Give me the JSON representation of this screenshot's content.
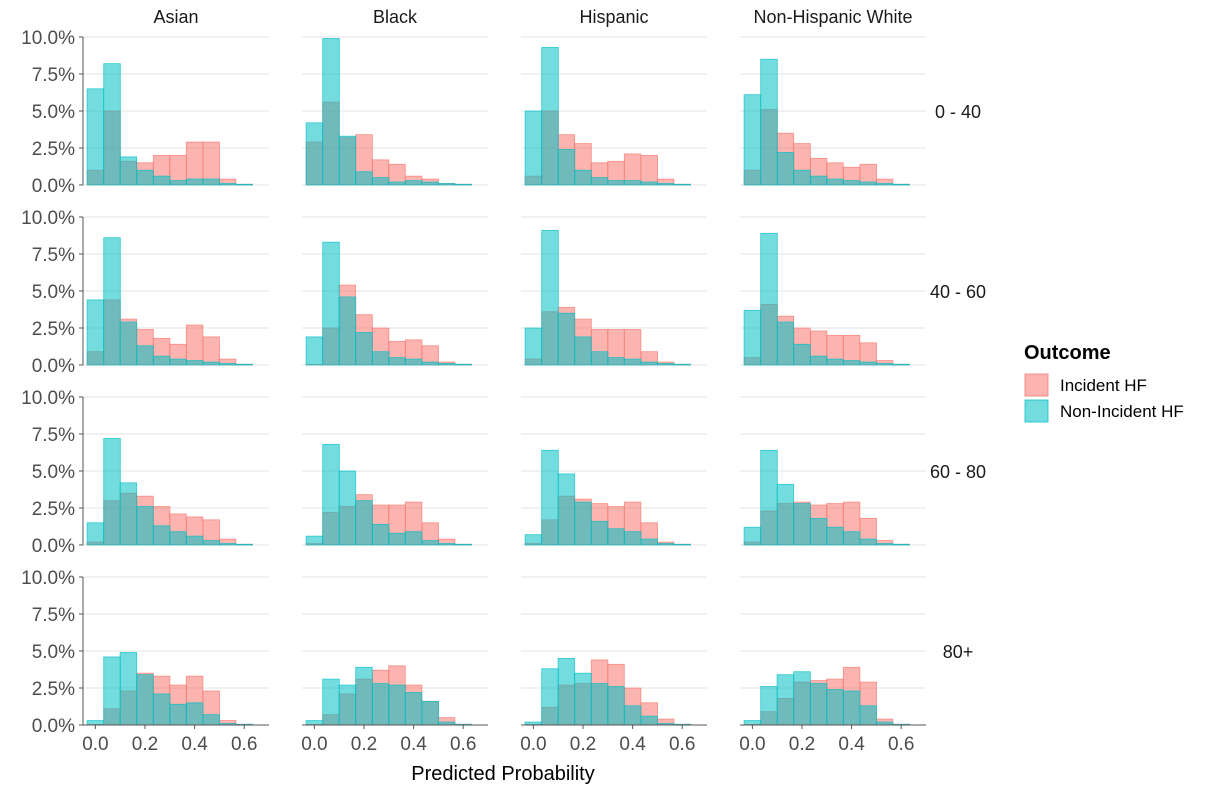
{
  "chart_data": {
    "type": "bar",
    "subtype": "faceted-overlapping-histogram",
    "xlabel": "Predicted Probability",
    "ylabel": "",
    "x_ticks": [
      "0.0",
      "0.2",
      "0.4",
      "0.6"
    ],
    "xlim": [
      -0.05,
      0.7
    ],
    "y_ticks": [
      "0.0%",
      "2.5%",
      "5.0%",
      "7.5%",
      "10.0%"
    ],
    "ylim": [
      0,
      10
    ],
    "grid": "horizontal",
    "bin_centers": [
      0.0,
      0.067,
      0.133,
      0.2,
      0.267,
      0.333,
      0.4,
      0.467,
      0.533,
      0.6
    ],
    "columns": [
      "Asian",
      "Black",
      "Hispanic",
      "Non-Hispanic White"
    ],
    "rows": [
      "0 - 40",
      "40 - 60",
      "60 - 80",
      "80+"
    ],
    "legend": {
      "title": "Outcome",
      "position": "right",
      "items": [
        {
          "name": "Incident HF",
          "color": "#F8766D"
        },
        {
          "name": "Non-Incident HF",
          "color": "#00BFC4"
        }
      ]
    },
    "panels": [
      {
        "row": "0 - 40",
        "col": "Asian",
        "incident_hf": [
          1.0,
          5.0,
          1.6,
          1.5,
          2.0,
          2.0,
          2.9,
          2.9,
          0.4,
          0.05
        ],
        "non_incident_hf": [
          6.5,
          8.2,
          1.9,
          1.0,
          0.6,
          0.3,
          0.4,
          0.4,
          0.1,
          0.05
        ]
      },
      {
        "row": "0 - 40",
        "col": "Black",
        "incident_hf": [
          2.9,
          5.6,
          3.2,
          3.4,
          1.7,
          1.4,
          0.6,
          0.4,
          0.1,
          0.05
        ],
        "non_incident_hf": [
          4.2,
          9.9,
          3.3,
          0.9,
          0.5,
          0.2,
          0.3,
          0.2,
          0.1,
          0.05
        ]
      },
      {
        "row": "0 - 40",
        "col": "Hispanic",
        "incident_hf": [
          0.6,
          5.0,
          3.4,
          2.8,
          1.5,
          1.6,
          2.1,
          2.0,
          0.4,
          0.05
        ],
        "non_incident_hf": [
          5.0,
          9.3,
          2.4,
          1.0,
          0.5,
          0.3,
          0.3,
          0.2,
          0.1,
          0.05
        ]
      },
      {
        "row": "0 - 40",
        "col": "Non-Hispanic White",
        "incident_hf": [
          1.0,
          5.1,
          3.5,
          2.8,
          1.8,
          1.5,
          1.2,
          1.4,
          0.4,
          0.05
        ],
        "non_incident_hf": [
          6.1,
          8.5,
          2.2,
          1.0,
          0.6,
          0.4,
          0.3,
          0.2,
          0.1,
          0.05
        ]
      },
      {
        "row": "40 - 60",
        "col": "Asian",
        "incident_hf": [
          0.9,
          4.4,
          3.1,
          2.4,
          1.8,
          1.4,
          2.7,
          1.9,
          0.4,
          0.05
        ],
        "non_incident_hf": [
          4.4,
          8.6,
          2.9,
          1.3,
          0.6,
          0.4,
          0.3,
          0.2,
          0.1,
          0.05
        ]
      },
      {
        "row": "40 - 60",
        "col": "Black",
        "incident_hf": [
          0.0,
          2.5,
          5.4,
          3.4,
          2.5,
          1.6,
          1.7,
          1.3,
          0.2,
          0.05
        ],
        "non_incident_hf": [
          1.9,
          8.3,
          4.6,
          2.2,
          0.9,
          0.5,
          0.4,
          0.2,
          0.1,
          0.05
        ]
      },
      {
        "row": "40 - 60",
        "col": "Hispanic",
        "incident_hf": [
          0.4,
          3.6,
          3.9,
          3.1,
          2.4,
          2.4,
          2.4,
          0.9,
          0.2,
          0.05
        ],
        "non_incident_hf": [
          2.5,
          9.1,
          3.5,
          1.9,
          0.9,
          0.5,
          0.4,
          0.2,
          0.1,
          0.05
        ]
      },
      {
        "row": "40 - 60",
        "col": "Non-Hispanic White",
        "incident_hf": [
          0.5,
          4.1,
          3.3,
          2.5,
          2.3,
          2.0,
          2.0,
          1.5,
          0.3,
          0.05
        ],
        "non_incident_hf": [
          3.7,
          8.9,
          2.9,
          1.4,
          0.6,
          0.4,
          0.3,
          0.2,
          0.1,
          0.05
        ]
      },
      {
        "row": "60 - 80",
        "col": "Asian",
        "incident_hf": [
          0.2,
          3.0,
          3.5,
          3.3,
          2.6,
          2.1,
          1.9,
          1.7,
          0.4,
          0.05
        ],
        "non_incident_hf": [
          1.5,
          7.2,
          4.2,
          2.6,
          1.3,
          0.9,
          0.6,
          0.3,
          0.1,
          0.05
        ]
      },
      {
        "row": "60 - 80",
        "col": "Black",
        "incident_hf": [
          0.1,
          2.2,
          2.6,
          3.4,
          2.7,
          2.7,
          2.9,
          1.5,
          0.4,
          0.05
        ],
        "non_incident_hf": [
          0.6,
          6.8,
          5.0,
          3.0,
          1.4,
          0.8,
          0.9,
          0.3,
          0.1,
          0.05
        ]
      },
      {
        "row": "60 - 80",
        "col": "Hispanic",
        "incident_hf": [
          0.1,
          1.7,
          3.3,
          3.1,
          2.8,
          2.6,
          2.9,
          1.5,
          0.2,
          0.05
        ],
        "non_incident_hf": [
          0.7,
          6.4,
          4.8,
          2.9,
          1.6,
          1.1,
          0.9,
          0.4,
          0.1,
          0.05
        ]
      },
      {
        "row": "60 - 80",
        "col": "Non-Hispanic White",
        "incident_hf": [
          0.2,
          2.3,
          2.8,
          2.9,
          2.7,
          2.8,
          2.9,
          1.8,
          0.3,
          0.05
        ],
        "non_incident_hf": [
          1.2,
          6.4,
          4.1,
          2.8,
          1.8,
          1.2,
          0.9,
          0.4,
          0.1,
          0.05
        ]
      },
      {
        "row": "80+",
        "col": "Asian",
        "incident_hf": [
          0.0,
          1.1,
          2.3,
          3.5,
          3.3,
          2.7,
          3.3,
          2.3,
          0.3,
          0.05
        ],
        "non_incident_hf": [
          0.3,
          4.6,
          4.9,
          3.4,
          2.1,
          1.4,
          1.5,
          0.7,
          0.1,
          0.05
        ]
      },
      {
        "row": "80+",
        "col": "Black",
        "incident_hf": [
          0.0,
          0.7,
          2.1,
          3.1,
          3.7,
          4.0,
          2.7,
          1.6,
          0.5,
          0.05
        ],
        "non_incident_hf": [
          0.3,
          3.1,
          2.7,
          3.9,
          2.8,
          2.7,
          2.2,
          1.6,
          0.2,
          0.05
        ]
      },
      {
        "row": "80+",
        "col": "Hispanic",
        "incident_hf": [
          0.0,
          1.2,
          2.7,
          2.8,
          4.4,
          4.1,
          2.5,
          1.5,
          0.4,
          0.05
        ],
        "non_incident_hf": [
          0.2,
          3.8,
          4.5,
          3.5,
          2.8,
          2.6,
          1.3,
          0.6,
          0.1,
          0.05
        ]
      },
      {
        "row": "80+",
        "col": "Non-Hispanic White",
        "incident_hf": [
          0.0,
          0.9,
          1.8,
          2.9,
          3.0,
          3.1,
          3.9,
          2.9,
          0.4,
          0.05
        ],
        "non_incident_hf": [
          0.3,
          2.6,
          3.4,
          3.6,
          2.8,
          2.4,
          2.3,
          1.3,
          0.2,
          0.05
        ]
      }
    ]
  }
}
